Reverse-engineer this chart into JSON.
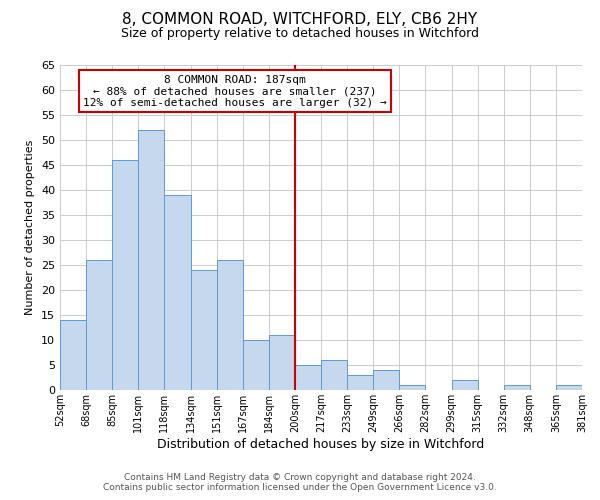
{
  "title": "8, COMMON ROAD, WITCHFORD, ELY, CB6 2HY",
  "subtitle": "Size of property relative to detached houses in Witchford",
  "xlabel": "Distribution of detached houses by size in Witchford",
  "ylabel": "Number of detached properties",
  "bin_labels": [
    "52sqm",
    "68sqm",
    "85sqm",
    "101sqm",
    "118sqm",
    "134sqm",
    "151sqm",
    "167sqm",
    "184sqm",
    "200sqm",
    "217sqm",
    "233sqm",
    "249sqm",
    "266sqm",
    "282sqm",
    "299sqm",
    "315sqm",
    "332sqm",
    "348sqm",
    "365sqm",
    "381sqm"
  ],
  "bar_values": [
    14,
    26,
    46,
    52,
    39,
    24,
    26,
    10,
    11,
    5,
    6,
    3,
    4,
    1,
    0,
    2,
    0,
    1,
    0,
    1
  ],
  "bar_color": "#c5d8ed",
  "bar_edge_color": "#5b9bd5",
  "vline_color": "#cc0000",
  "annotation_text": "8 COMMON ROAD: 187sqm\n← 88% of detached houses are smaller (237)\n12% of semi-detached houses are larger (32) →",
  "annotation_box_color": "#ffffff",
  "annotation_box_edge_color": "#cc0000",
  "ylim": [
    0,
    65
  ],
  "yticks": [
    0,
    5,
    10,
    15,
    20,
    25,
    30,
    35,
    40,
    45,
    50,
    55,
    60,
    65
  ],
  "footer_line1": "Contains HM Land Registry data © Crown copyright and database right 2024.",
  "footer_line2": "Contains public sector information licensed under the Open Government Licence v3.0.",
  "bg_color": "#ffffff",
  "grid_color": "#cccccc",
  "title_fontsize": 11,
  "subtitle_fontsize": 9,
  "ylabel_fontsize": 8,
  "xlabel_fontsize": 9,
  "annotation_fontsize": 8,
  "footer_fontsize": 6.5
}
